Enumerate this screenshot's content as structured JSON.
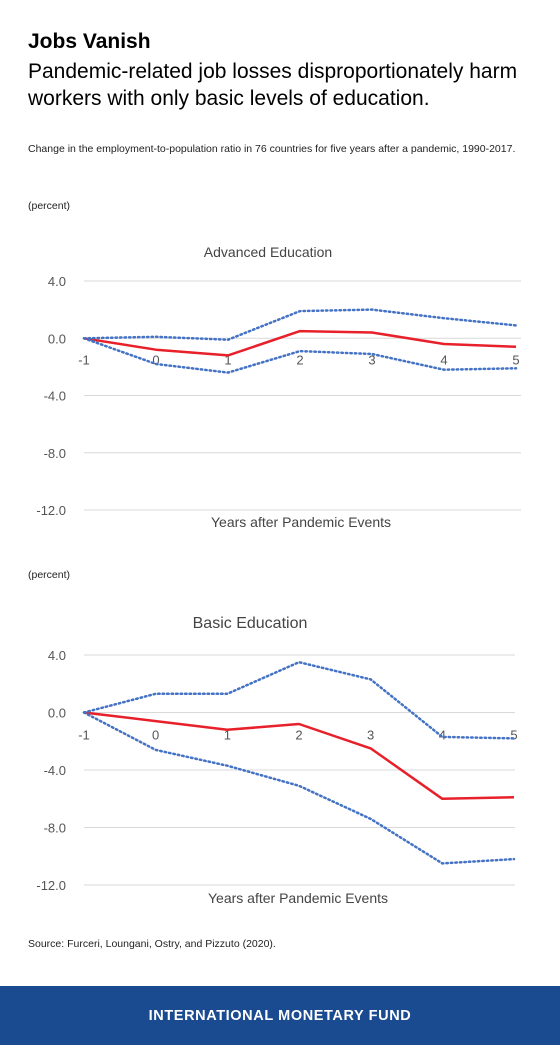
{
  "header": {
    "title": "Jobs Vanish",
    "subtitle": "Pandemic-related job losses disproportionately harm workers with only basic levels of education.",
    "note": "Change in the employment-to-population ratio in 76 countries for five years after a pandemic, 1990-2017."
  },
  "source": "Source: Furceri, Loungani, Ostry, and Pizzuto (2020).",
  "footer": {
    "label": "INTERNATIONAL MONETARY FUND",
    "background": "#1a4a8f"
  },
  "chart_data": [
    {
      "type": "line",
      "title": "Advanced Education",
      "unit_label": "(percent)",
      "xlabel": "Years after Pandemic Events",
      "x": [
        -1,
        0,
        1,
        2,
        3,
        4,
        5
      ],
      "yticks": [
        4.0,
        0.0,
        -4.0,
        -8.0,
        -12.0
      ],
      "ylim": [
        -12,
        4
      ],
      "grid": true,
      "series": [
        {
          "role": "estimate",
          "color": "#e8202a",
          "style": "solid",
          "values": [
            0.0,
            -0.8,
            -1.2,
            0.5,
            0.4,
            -0.4,
            -0.6
          ]
        },
        {
          "role": "upper-band",
          "color": "#4472c4",
          "style": "dotted",
          "values": [
            0.0,
            0.1,
            -0.1,
            1.9,
            2.0,
            1.4,
            0.9
          ]
        },
        {
          "role": "lower-band",
          "color": "#4472c4",
          "style": "dotted",
          "values": [
            0.0,
            -1.8,
            -2.4,
            -0.9,
            -1.1,
            -2.2,
            -2.1
          ]
        }
      ]
    },
    {
      "type": "line",
      "title": "Basic Education",
      "unit_label": "(percent)",
      "xlabel": "Years after Pandemic Events",
      "x": [
        -1,
        0,
        1,
        2,
        3,
        4,
        5
      ],
      "yticks": [
        4.0,
        0.0,
        -4.0,
        -8.0,
        -12.0
      ],
      "ylim": [
        -12,
        4
      ],
      "grid": true,
      "series": [
        {
          "role": "estimate",
          "color": "#e8202a",
          "style": "solid",
          "values": [
            0.0,
            -0.6,
            -1.2,
            -0.8,
            -2.5,
            -6.0,
            -5.9
          ]
        },
        {
          "role": "upper-band",
          "color": "#4472c4",
          "style": "dotted",
          "values": [
            0.0,
            1.3,
            1.3,
            3.5,
            2.3,
            -1.7,
            -1.8
          ]
        },
        {
          "role": "lower-band",
          "color": "#4472c4",
          "style": "dotted",
          "values": [
            0.0,
            -2.6,
            -3.7,
            -5.1,
            -7.4,
            -10.5,
            -10.2
          ]
        }
      ]
    }
  ]
}
